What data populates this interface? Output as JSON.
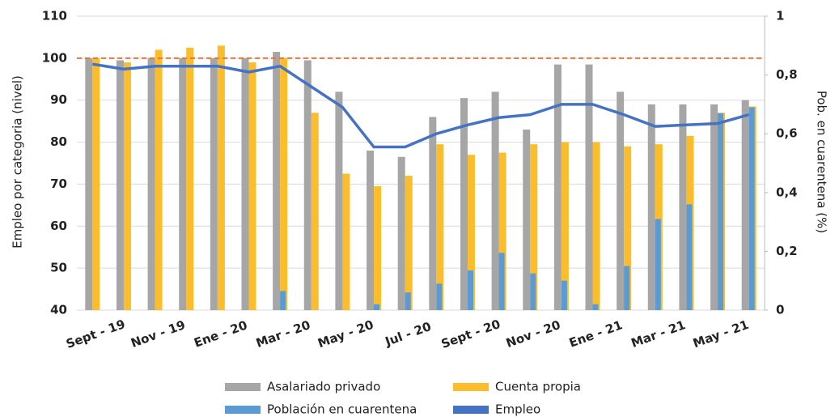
{
  "chart_data": {
    "type": "bar_line",
    "categories": [
      "Sept - 19",
      null,
      "Nov - 19",
      null,
      "Ene - 20",
      null,
      "Mar - 20",
      null,
      "May - 20",
      null,
      "Jul - 20",
      null,
      "Sept - 20",
      null,
      "Nov - 20",
      null,
      "Ene - 21",
      null,
      "Mar - 21",
      null,
      "May - 21",
      null
    ],
    "y_label": "Empleo por categoria (nivel)",
    "y2_label": "Pob. en cuarentena (%)",
    "ylim": [
      40,
      110
    ],
    "yticks": [
      40,
      50,
      60,
      70,
      80,
      90,
      100,
      110
    ],
    "y2lim": [
      0,
      1
    ],
    "y2ticks": [
      0,
      {
        "value": 0.2,
        "label": "0,2"
      },
      {
        "value": 0.4,
        "label": "0,4"
      },
      {
        "value": 0.6,
        "label": "0,6"
      },
      {
        "value": 0.8,
        "label": "0,8"
      },
      1
    ],
    "reference_line": 100,
    "reference_color": "#e8743b",
    "grid": true,
    "series": [
      {
        "name": "Asalariado privado",
        "type": "bar",
        "color": "#a6a6a6",
        "values": [
          100,
          99.5,
          100,
          100,
          100,
          100,
          101.5,
          99.5,
          92,
          78,
          76.5,
          86,
          90.5,
          92,
          83,
          98.5,
          98.5,
          92,
          89,
          89,
          89,
          90
        ]
      },
      {
        "name": "Cuenta propia",
        "type": "bar",
        "color": "#fbbd2b",
        "values": [
          100,
          99,
          102,
          102.5,
          103,
          99,
          100,
          87,
          72.5,
          69.5,
          72,
          79.5,
          77,
          77.5,
          79.5,
          80,
          80,
          79,
          79.5,
          81.5,
          87,
          88.5
        ]
      },
      {
        "name": "Población en cuarentena",
        "type": "bar",
        "axis": "y2",
        "color": "#5b9bd5",
        "values": [
          0,
          0,
          0,
          0,
          0,
          0,
          0.065,
          0,
          0,
          0.02,
          0.06,
          0.09,
          0.135,
          0.195,
          0.125,
          0.1,
          0.02,
          0.15,
          0.31,
          0.36,
          0.67,
          0.69
        ]
      },
      {
        "name": "Empleo",
        "type": "line",
        "axis": "y2",
        "color": "#4472c4",
        "values": [
          0.837,
          0.82,
          0.83,
          0.83,
          0.83,
          0.81,
          0.83,
          0.76,
          0.69,
          0.555,
          0.555,
          0.6,
          0.63,
          0.655,
          0.665,
          0.7,
          0.7,
          0.665,
          0.625,
          0.63,
          0.635,
          0.665
        ]
      }
    ]
  }
}
